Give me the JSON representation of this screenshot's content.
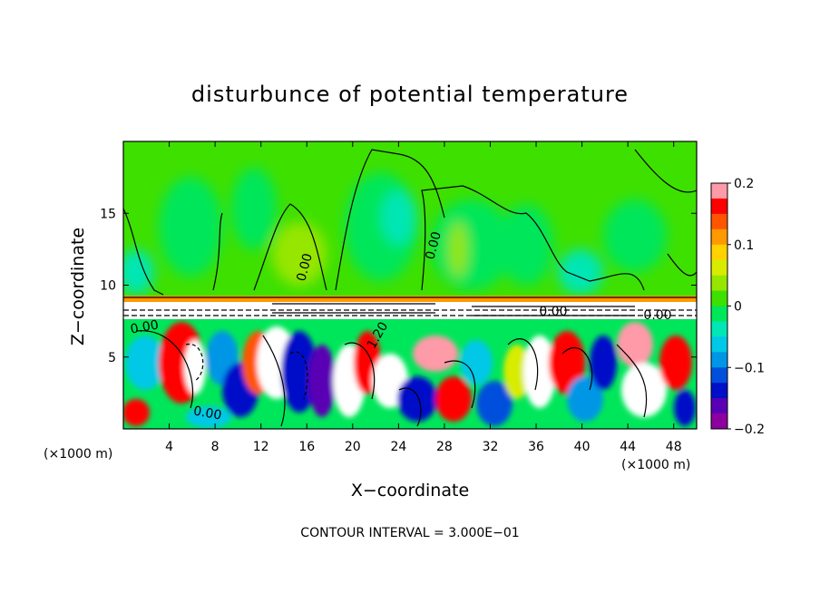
{
  "chart_data": {
    "type": "heatmap",
    "title": "disturbunce of potential temperature",
    "xlabel": "X−coordinate",
    "ylabel": "Z−coordinate",
    "x_unit": "(×1000 m)",
    "z_unit": "(×1000 m)",
    "xlim": [
      0,
      50
    ],
    "ylim": [
      0,
      20
    ],
    "x_ticks": [
      "4",
      "8",
      "12",
      "16",
      "20",
      "24",
      "28",
      "32",
      "36",
      "40",
      "44",
      "48"
    ],
    "x_tick_values": [
      4,
      8,
      12,
      16,
      20,
      24,
      28,
      32,
      36,
      40,
      44,
      48
    ],
    "y_ticks": [
      "5",
      "10",
      "15"
    ],
    "y_tick_values": [
      5,
      10,
      15
    ],
    "colorbar": {
      "range": [
        -0.2,
        0.2
      ],
      "tick_labels": [
        "0.2",
        "0.1",
        "0",
        "−0.1",
        "−0.2"
      ],
      "tick_values": [
        0.2,
        0.1,
        0,
        -0.1,
        -0.2
      ],
      "colors": [
        "#ff9aa8",
        "#ff0000",
        "#ff5500",
        "#ff9900",
        "#ffd200",
        "#d8ec00",
        "#96e600",
        "#3ee000",
        "#00e65a",
        "#00e6b4",
        "#00c8e6",
        "#0096e6",
        "#0050dc",
        "#0010c8",
        "#5a00b4",
        "#8c00a0"
      ]
    },
    "contour_labels": [
      "0.00",
      "0.00",
      "0.00",
      "0.00",
      "1.20",
      "0.00",
      "0.00"
    ],
    "contour_interval_text": "CONTOUR INTERVAL = 3.000E−01"
  }
}
